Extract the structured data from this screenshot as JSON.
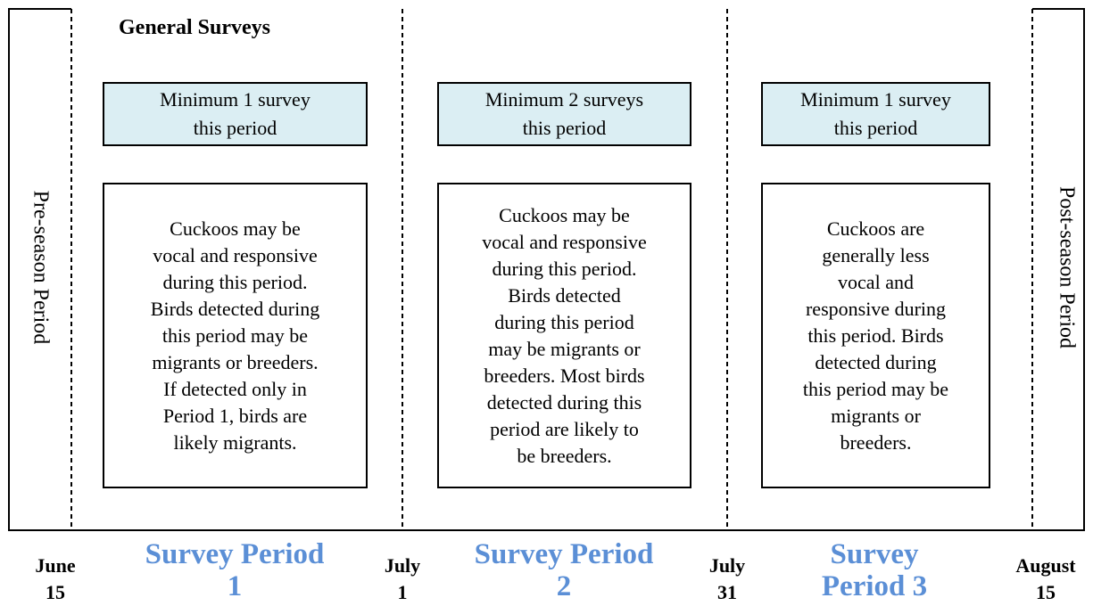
{
  "title": "General Surveys",
  "side_labels": [
    "Pre-season Period",
    "Post-season Period"
  ],
  "periods": [
    {
      "requirement": [
        "Minimum 1 survey",
        "this period"
      ],
      "description": [
        "Cuckoos may be",
        "vocal and responsive",
        "during this period.",
        "Birds detected during",
        "this period may be",
        "migrants or breeders.",
        "If detected only in",
        "Period 1, birds are",
        "likely migrants."
      ],
      "label": [
        "Survey Period",
        "1"
      ]
    },
    {
      "requirement": [
        "Minimum 2 surveys",
        "this period"
      ],
      "description": [
        "Cuckoos may be",
        "vocal and responsive",
        "during this period.",
        "Birds detected",
        "during this period",
        "may be migrants or",
        "breeders. Most birds",
        "detected during this",
        "period are likely to",
        "be breeders."
      ],
      "label": [
        "Survey Period",
        "2"
      ]
    },
    {
      "requirement": [
        "Minimum 1 survey",
        "this period"
      ],
      "description": [
        "Cuckoos are",
        "generally less",
        "vocal and",
        "responsive during",
        "this period. Birds",
        "detected during",
        "this period may be",
        "migrants or",
        "breeders."
      ],
      "label": [
        "Survey",
        "Period 3"
      ]
    }
  ],
  "dates": [
    [
      "June",
      "15"
    ],
    [
      "July",
      "1"
    ],
    [
      "July",
      "31"
    ],
    [
      "August",
      "15"
    ]
  ]
}
